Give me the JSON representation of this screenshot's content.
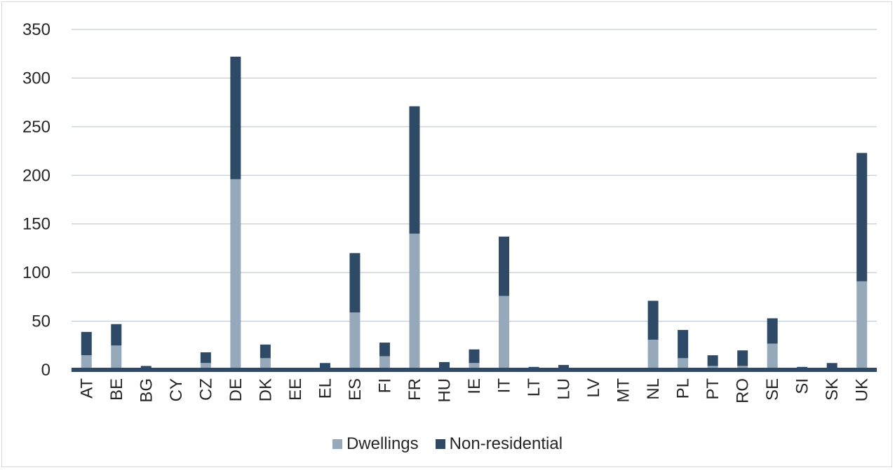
{
  "chart_data": {
    "type": "bar",
    "stacked": true,
    "categories": [
      "AT",
      "BE",
      "BG",
      "CY",
      "CZ",
      "DE",
      "DK",
      "EE",
      "EL",
      "ES",
      "FI",
      "FR",
      "HU",
      "IE",
      "IT",
      "LT",
      "LU",
      "LV",
      "MT",
      "NL",
      "PL",
      "PT",
      "RO",
      "SE",
      "SI",
      "SK",
      "UK"
    ],
    "series": [
      {
        "name": "Dwellings",
        "color": "#95a9bb",
        "values": [
          15,
          25,
          1,
          0,
          7,
          196,
          12,
          1,
          2,
          59,
          14,
          140,
          2,
          7,
          76,
          1,
          2,
          1,
          0,
          31,
          12,
          4,
          4,
          27,
          1,
          2,
          91
        ]
      },
      {
        "name": "Non-residential",
        "color": "#2e4a66",
        "values": [
          24,
          22,
          3,
          0,
          11,
          126,
          14,
          1,
          5,
          61,
          14,
          131,
          6,
          14,
          61,
          2,
          3,
          1,
          0,
          40,
          29,
          11,
          16,
          26,
          2,
          5,
          132
        ]
      }
    ],
    "ylim": [
      0,
      350
    ],
    "yticks": [
      "0",
      "50",
      "100",
      "150",
      "200",
      "250",
      "300",
      "350"
    ],
    "grid": true,
    "legend_position": "bottom"
  }
}
